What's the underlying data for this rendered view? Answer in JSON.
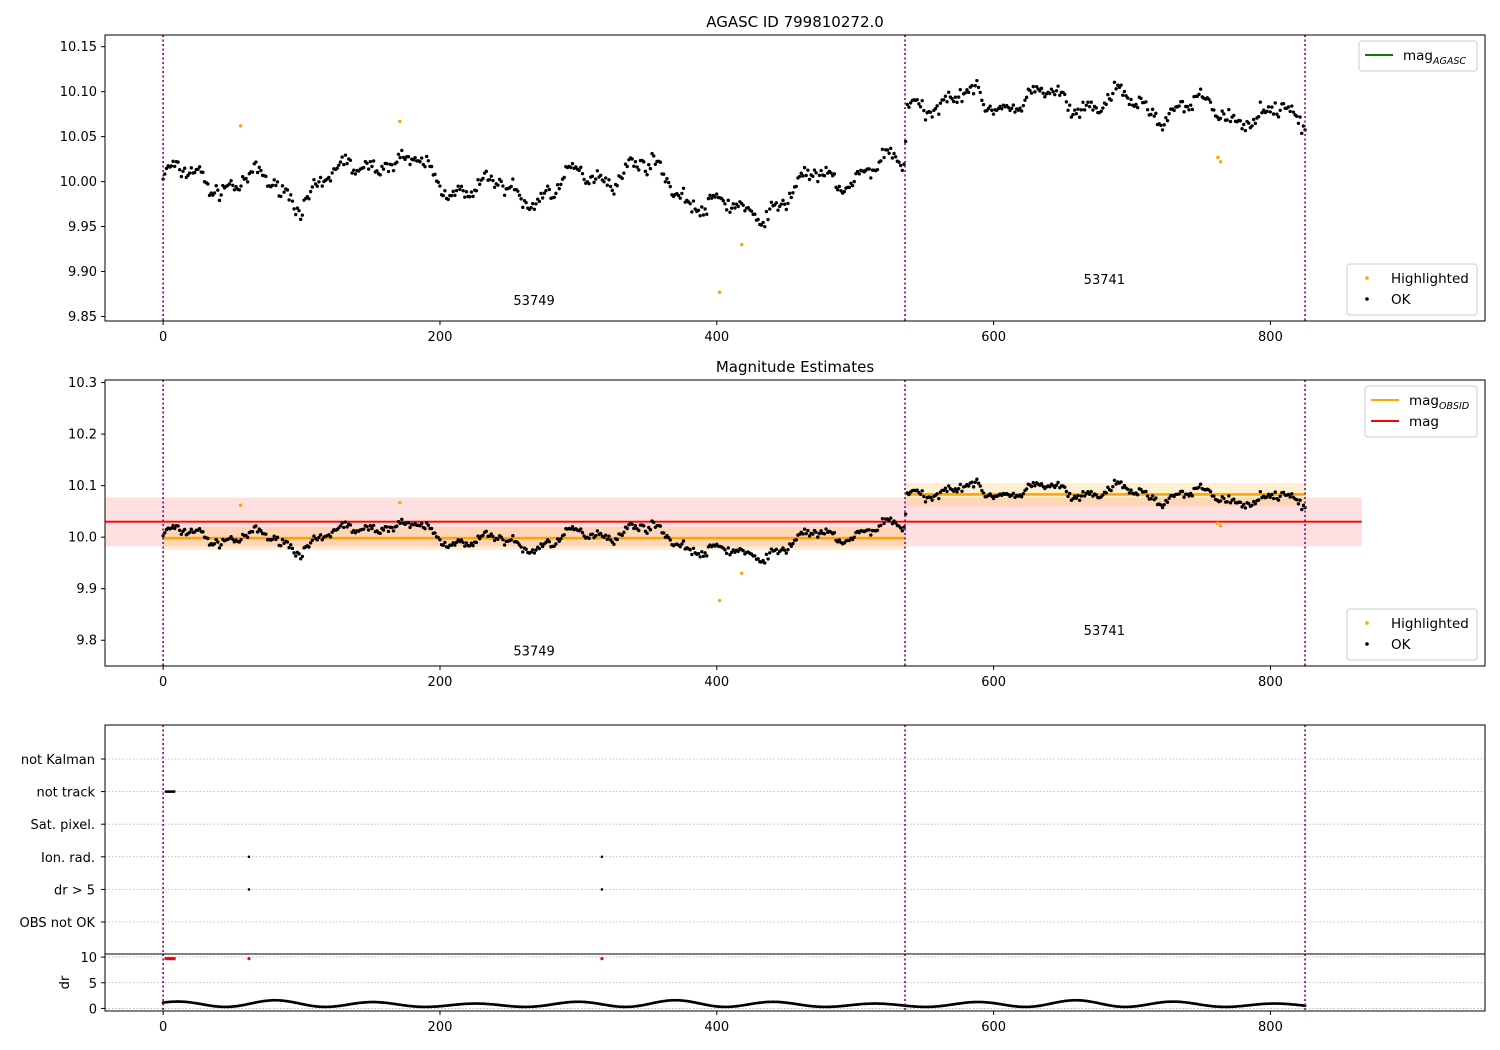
{
  "chart_data": [
    {
      "type": "scatter",
      "title": "AGASC ID 799810272.0",
      "xlabel": "",
      "ylabel": "",
      "xlim": [
        -42,
        955
      ],
      "ylim": [
        9.845,
        10.163
      ],
      "xticks": [
        0,
        200,
        400,
        600,
        800
      ],
      "yticks": [
        9.85,
        9.9,
        9.95,
        10.0,
        10.05,
        10.1,
        10.15
      ],
      "ytick_labels": [
        "9.85",
        "9.90",
        "9.95",
        "10.00",
        "10.05",
        "10.10",
        "10.15"
      ],
      "grid": false,
      "obsid_boundaries": [
        0,
        536,
        825
      ],
      "obsid_labels": [
        {
          "text": "53749",
          "x": 268,
          "y": 9.863
        },
        {
          "text": "53741",
          "x": 680,
          "y": 9.886
        }
      ],
      "legends": [
        {
          "placement": "upper-right",
          "entries": [
            {
              "label": "mag",
              "sub": "AGASC",
              "kind": "line",
              "color": "#008000"
            }
          ]
        },
        {
          "placement": "lower-right",
          "entries": [
            {
              "label": "Highlighted",
              "kind": "dot",
              "color": "#ffa500"
            },
            {
              "label": "OK",
              "kind": "dot",
              "color": "#000000"
            }
          ]
        }
      ],
      "series": [
        {
          "name": "OK",
          "color": "#000000",
          "x_range": [
            0,
            825
          ],
          "count": 690,
          "trend": [
            [
              0,
              10.005
            ],
            [
              60,
              10.0
            ],
            [
              100,
              9.985
            ],
            [
              160,
              10.03
            ],
            [
              200,
              10.0
            ],
            [
              260,
              9.985
            ],
            [
              300,
              10.0
            ],
            [
              340,
              10.02
            ],
            [
              380,
              9.985
            ],
            [
              420,
              9.96
            ],
            [
              470,
              10.0
            ],
            [
              536,
              10.02
            ],
            [
              537,
              10.09
            ],
            [
              650,
              10.09
            ],
            [
              700,
              10.085
            ],
            [
              825,
              10.07
            ]
          ]
        },
        {
          "name": "Highlighted",
          "color": "#ffa500",
          "points": [
            [
              56,
              10.062
            ],
            [
              171,
              10.067
            ],
            [
              402,
              9.877
            ],
            [
              418,
              9.93
            ],
            [
              762,
              10.027
            ],
            [
              764,
              10.022
            ]
          ]
        }
      ]
    },
    {
      "type": "scatter",
      "title": "Magnitude Estimates",
      "xlabel": "",
      "ylabel": "",
      "xlim": [
        -42,
        955
      ],
      "ylim": [
        9.75,
        10.305
      ],
      "xticks": [
        0,
        200,
        400,
        600,
        800
      ],
      "yticks": [
        9.8,
        9.9,
        10.0,
        10.1,
        10.2,
        10.3
      ],
      "ytick_labels": [
        "9.8",
        "9.9",
        "10.0",
        "10.1",
        "10.2",
        "10.3"
      ],
      "grid": false,
      "obsid_boundaries": [
        0,
        536,
        825
      ],
      "obsid_labels": [
        {
          "text": "53749",
          "x": 268,
          "y": 9.77
        },
        {
          "text": "53741",
          "x": 680,
          "y": 9.81
        }
      ],
      "legends": [
        {
          "placement": "upper-right",
          "entries": [
            {
              "label": "mag",
              "sub": "OBSID",
              "kind": "line",
              "color": "#ffa500"
            },
            {
              "label": "mag",
              "sub": "",
              "kind": "line",
              "color": "#ff0000"
            }
          ]
        },
        {
          "placement": "lower-right",
          "entries": [
            {
              "label": "Highlighted",
              "kind": "dot",
              "color": "#ffa500"
            },
            {
              "label": "OK",
              "kind": "dot",
              "color": "#000000"
            }
          ]
        }
      ],
      "mag_agg": {
        "value": 10.03,
        "band": [
          9.982,
          10.077
        ],
        "x_range": [
          -42,
          866
        ],
        "color": "#ff0000"
      },
      "mag_obsid": [
        {
          "x_range": [
            0,
            536
          ],
          "value": 9.998,
          "band": [
            9.975,
            10.02
          ]
        },
        {
          "x_range": [
            536,
            825
          ],
          "value": 10.083,
          "band": [
            10.06,
            10.105
          ]
        }
      ],
      "series": [
        {
          "name": "OK",
          "color": "#000000",
          "same_as_panel": 1
        },
        {
          "name": "Highlighted",
          "color": "#ffa500",
          "same_as_panel": 1
        }
      ]
    },
    {
      "type": "scatter",
      "title": "",
      "xlim": [
        -42,
        955
      ],
      "xticks": [
        0,
        200,
        400,
        600,
        800
      ],
      "obsid_boundaries": [
        0,
        536,
        825
      ],
      "flag_rows": [
        "not Kalman",
        "not track",
        "Sat. pixel.",
        "Ion. rad.",
        "dr > 5",
        "OBS not OK"
      ],
      "flags": [
        {
          "row": "not track",
          "x": [
            2,
            3,
            4,
            5,
            6,
            7,
            8
          ]
        },
        {
          "row": "Ion. rad.",
          "x": [
            62,
            317
          ]
        },
        {
          "row": "dr > 5",
          "x": [
            62,
            317
          ]
        }
      ],
      "dr_panel": {
        "ylabel": "dr",
        "ylim": [
          -0.5,
          10.6
        ],
        "yticks": [
          0,
          5,
          10
        ],
        "ytick_labels": [
          "0",
          "5",
          "10"
        ],
        "high_points": {
          "color": "#ff0000",
          "value": 9.7,
          "x": [
            2,
            3,
            4,
            5,
            6,
            7,
            8,
            62,
            317
          ]
        },
        "baseline": {
          "color": "#000000",
          "x_range": [
            0,
            825
          ],
          "count": 690,
          "low": 0.3,
          "high": 1.6
        }
      }
    }
  ]
}
